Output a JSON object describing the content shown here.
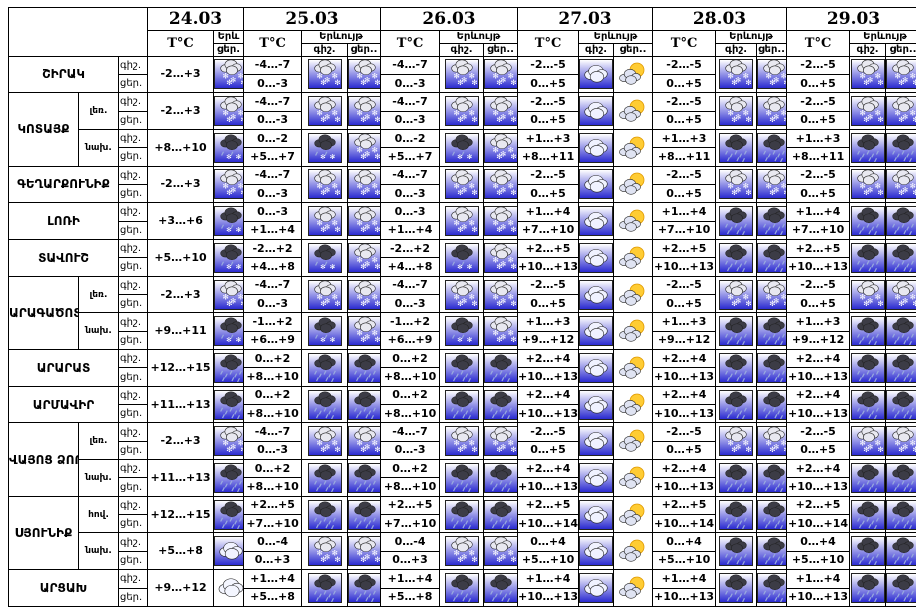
{
  "header": {
    "dates": [
      "24.03",
      "25.03",
      "26.03",
      "27.03",
      "28.03",
      "29.03"
    ],
    "temp_label": "T°C",
    "weather_label": "Երևույթ",
    "weather_label_short": "Երև",
    "day_label": "ցեր.",
    "night_label": "գիշ.",
    "night_label_short": "գիշ.",
    "day_label_short": "ցեր.."
  },
  "period_labels": [
    "գիշ.",
    "ցեր."
  ],
  "regions": [
    {
      "name": "ՇԻՐԱԿ"
    },
    {
      "name": "ԿՈՏԱՅՔ",
      "subs": [
        "լեռ.",
        "նախ."
      ]
    },
    {
      "name": "ԳԵՂԱՐՔՈՒՆԻՔ"
    },
    {
      "name": "ԼՈՌԻ"
    },
    {
      "name": "ՏԱՎՈՒՇ"
    },
    {
      "name": "ԱՐԱԳԱԾՈՏՆ",
      "subs": [
        "լեռ.",
        "նախ."
      ]
    },
    {
      "name": "ԱՐԱՐԱՏ"
    },
    {
      "name": "ԱՐՄԱՎԻՐ"
    },
    {
      "name": "ՎԱՅՈՑ ՁՈՐ",
      "subs": [
        "լեռ.",
        "նախ."
      ]
    },
    {
      "name": "ՍՅՈՒՆԻՔ",
      "subs": [
        "հով.",
        "նախ."
      ]
    },
    {
      "name": "ԱՐՑԱԽ"
    }
  ],
  "rows": [
    {
      "t24": "-2…+3",
      "t": [
        [
          "-4…-7",
          "0…-3"
        ],
        [
          "-4…-7",
          "0…-3"
        ],
        [
          "-2…-5",
          "0…+5"
        ],
        [
          "-2…-5",
          "0…+5"
        ],
        [
          "-2…-5",
          "0…+5"
        ]
      ],
      "icons": [
        "snow",
        [
          "snow",
          "snow"
        ],
        [
          "snow",
          "snow"
        ],
        [
          "cloud",
          "partly"
        ],
        [
          "snow",
          "snow"
        ],
        [
          "snow",
          "snow"
        ]
      ]
    },
    {
      "t24": "-2…+3",
      "t": [
        [
          "-4…-7",
          "0…-3"
        ],
        [
          "-4…-7",
          "0…-3"
        ],
        [
          "-2…-5",
          "0…+5"
        ],
        [
          "-2…-5",
          "0…+5"
        ],
        [
          "-2…-5",
          "0…+5"
        ]
      ],
      "icons": [
        "snow",
        [
          "snow",
          "snow"
        ],
        [
          "snow",
          "snow"
        ],
        [
          "cloud",
          "partly"
        ],
        [
          "snow",
          "snow"
        ],
        [
          "snow",
          "snow"
        ]
      ]
    },
    {
      "t24": "+8…+10",
      "t": [
        [
          "0…-2",
          "+5…+7"
        ],
        [
          "0…-2",
          "+5…+7"
        ],
        [
          "+1…+3",
          "+8…+11"
        ],
        [
          "+1…+3",
          "+8…+11"
        ],
        [
          "+1…+3",
          "+8…+11"
        ]
      ],
      "icons": [
        "rainsnow",
        [
          "rainsnow",
          "snow"
        ],
        [
          "rainsnow",
          "snow"
        ],
        [
          "cloud",
          "partly"
        ],
        [
          "rain",
          "rain"
        ],
        [
          "rain",
          "rain"
        ]
      ]
    },
    {
      "t24": "-2…+3",
      "t": [
        [
          "-4…-7",
          "0…-3"
        ],
        [
          "-4…-7",
          "0…-3"
        ],
        [
          "-2…-5",
          "0…+5"
        ],
        [
          "-2…-5",
          "0…+5"
        ],
        [
          "-2…-5",
          "0…+5"
        ]
      ],
      "icons": [
        "snow",
        [
          "snow",
          "snow"
        ],
        [
          "snow",
          "snow"
        ],
        [
          "cloud",
          "partly"
        ],
        [
          "snow",
          "snow"
        ],
        [
          "snow",
          "snow"
        ]
      ]
    },
    {
      "t24": "+3…+6",
      "t": [
        [
          "0…-3",
          "+1…+4"
        ],
        [
          "0…-3",
          "+1…+4"
        ],
        [
          "+1…+4",
          "+7…+10"
        ],
        [
          "+1…+4",
          "+7…+10"
        ],
        [
          "+1…+4",
          "+7…+10"
        ]
      ],
      "icons": [
        "rainsnow",
        [
          "snow",
          "snow"
        ],
        [
          "snow",
          "snow"
        ],
        [
          "cloud",
          "partly"
        ],
        [
          "rain",
          "rain"
        ],
        [
          "rain",
          "rain"
        ]
      ]
    },
    {
      "t24": "+5…+10",
      "t": [
        [
          "-2…+2",
          "+4…+8"
        ],
        [
          "-2…+2",
          "+4…+8"
        ],
        [
          "+2…+5",
          "+10…+13"
        ],
        [
          "+2…+5",
          "+10…+13"
        ],
        [
          "+2…+5",
          "+10…+13"
        ]
      ],
      "icons": [
        "rainsnow",
        [
          "rainsnow",
          "snow"
        ],
        [
          "rainsnow",
          "snow"
        ],
        [
          "cloud",
          "partly"
        ],
        [
          "rain",
          "rain"
        ],
        [
          "rain",
          "rain"
        ]
      ]
    },
    {
      "t24": "-2…+3",
      "t": [
        [
          "-4…-7",
          "0…-3"
        ],
        [
          "-4…-7",
          "0…-3"
        ],
        [
          "-2…-5",
          "0…+5"
        ],
        [
          "-2…-5",
          "0…+5"
        ],
        [
          "-2…-5",
          "0…+5"
        ]
      ],
      "icons": [
        "snow",
        [
          "snow",
          "snow"
        ],
        [
          "snow",
          "snow"
        ],
        [
          "cloud",
          "partly"
        ],
        [
          "snow",
          "snow"
        ],
        [
          "snow",
          "snow"
        ]
      ]
    },
    {
      "t24": "+9…+11",
      "t": [
        [
          "-1…+2",
          "+6…+9"
        ],
        [
          "-1…+2",
          "+6…+9"
        ],
        [
          "+1…+3",
          "+9…+12"
        ],
        [
          "+1…+3",
          "+9…+12"
        ],
        [
          "+1…+3",
          "+9…+12"
        ]
      ],
      "icons": [
        "rainsnow",
        [
          "rainsnow",
          "snow"
        ],
        [
          "rainsnow",
          "snow"
        ],
        [
          "cloud",
          "partly"
        ],
        [
          "rain",
          "rain"
        ],
        [
          "rain",
          "rain"
        ]
      ]
    },
    {
      "t24": "+12…+15",
      "t": [
        [
          "0…+2",
          "+8…+10"
        ],
        [
          "0…+2",
          "+8…+10"
        ],
        [
          "+2…+4",
          "+10…+13"
        ],
        [
          "+2…+4",
          "+10…+13"
        ],
        [
          "+2…+4",
          "+10…+13"
        ]
      ],
      "icons": [
        "rain",
        [
          "rain",
          "rain"
        ],
        [
          "rain",
          "rain"
        ],
        [
          "cloud",
          "partly"
        ],
        [
          "rain",
          "rain"
        ],
        [
          "rain",
          "rain"
        ]
      ]
    },
    {
      "t24": "+11…+13",
      "t": [
        [
          "0…+2",
          "+8…+10"
        ],
        [
          "0…+2",
          "+8…+10"
        ],
        [
          "+2…+4",
          "+10…+13"
        ],
        [
          "+2…+4",
          "+10…+13"
        ],
        [
          "+2…+4",
          "+10…+13"
        ]
      ],
      "icons": [
        "rain",
        [
          "rain",
          "rain"
        ],
        [
          "rain",
          "rain"
        ],
        [
          "cloud",
          "partly"
        ],
        [
          "rain",
          "rain"
        ],
        [
          "rain",
          "rain"
        ]
      ]
    },
    {
      "t24": "-2…+3",
      "t": [
        [
          "-4…-7",
          "0…-3"
        ],
        [
          "-4…-7",
          "0…-3"
        ],
        [
          "-2…-5",
          "0…+5"
        ],
        [
          "-2…-5",
          "0…+5"
        ],
        [
          "-2…-5",
          "0…+5"
        ]
      ],
      "icons": [
        "snow",
        [
          "snow",
          "snow"
        ],
        [
          "snow",
          "snow"
        ],
        [
          "cloud",
          "partly"
        ],
        [
          "snow",
          "snow"
        ],
        [
          "snow",
          "snow"
        ]
      ]
    },
    {
      "t24": "+11…+13",
      "t": [
        [
          "0…+2",
          "+8…+10"
        ],
        [
          "0…+2",
          "+8…+10"
        ],
        [
          "+2…+4",
          "+10…+13"
        ],
        [
          "+2…+4",
          "+10…+13"
        ],
        [
          "+2…+4",
          "+10…+13"
        ]
      ],
      "icons": [
        "rain",
        [
          "rain",
          "rain"
        ],
        [
          "rain",
          "rain"
        ],
        [
          "cloud",
          "partly"
        ],
        [
          "rain",
          "rain"
        ],
        [
          "rain",
          "rain"
        ]
      ]
    },
    {
      "t24": "+12…+15",
      "t": [
        [
          "+2…+5",
          "+7…+10"
        ],
        [
          "+2…+5",
          "+7…+10"
        ],
        [
          "+2…+5",
          "+10…+14"
        ],
        [
          "+2…+5",
          "+10…+14"
        ],
        [
          "+2…+5",
          "+10…+14"
        ]
      ],
      "icons": [
        "rain",
        [
          "rain",
          "rain"
        ],
        [
          "rain",
          "rain"
        ],
        [
          "cloud",
          "partly"
        ],
        [
          "rain",
          "rain"
        ],
        [
          "rain",
          "rain"
        ]
      ]
    },
    {
      "t24": "+5…+8",
      "t": [
        [
          "0…-4",
          "0…+3"
        ],
        [
          "0…-4",
          "0…+3"
        ],
        [
          "0…+4",
          "+5…+10"
        ],
        [
          "0…+4",
          "+5…+10"
        ],
        [
          "0…+4",
          "+5…+10"
        ]
      ],
      "icons": [
        "cloud",
        [
          "snow",
          "snow"
        ],
        [
          "snow",
          "snow"
        ],
        [
          "cloud",
          "partly"
        ],
        [
          "rain",
          "rain"
        ],
        [
          "rain",
          "rain"
        ]
      ]
    },
    {
      "t24": "+9…+12",
      "t": [
        [
          "+1…+4",
          "+5…+8"
        ],
        [
          "+1…+4",
          "+5…+8"
        ],
        [
          "+1…+4",
          "+10…+13"
        ],
        [
          "+1…+4",
          "+10…+13"
        ],
        [
          "+1…+4",
          "+10…+13"
        ]
      ],
      "icons": [
        "cloudbare",
        [
          "rain",
          "rain"
        ],
        [
          "rain",
          "rain"
        ],
        [
          "cloud",
          "partly"
        ],
        [
          "rain",
          "rain"
        ],
        [
          "rain",
          "rain"
        ]
      ]
    }
  ],
  "colors": {
    "icon_bg": "#2a2ad0",
    "icon_bg_light": "#ffffff",
    "cloud_dark": "#3c3c46",
    "sun": "#ffcc33"
  }
}
